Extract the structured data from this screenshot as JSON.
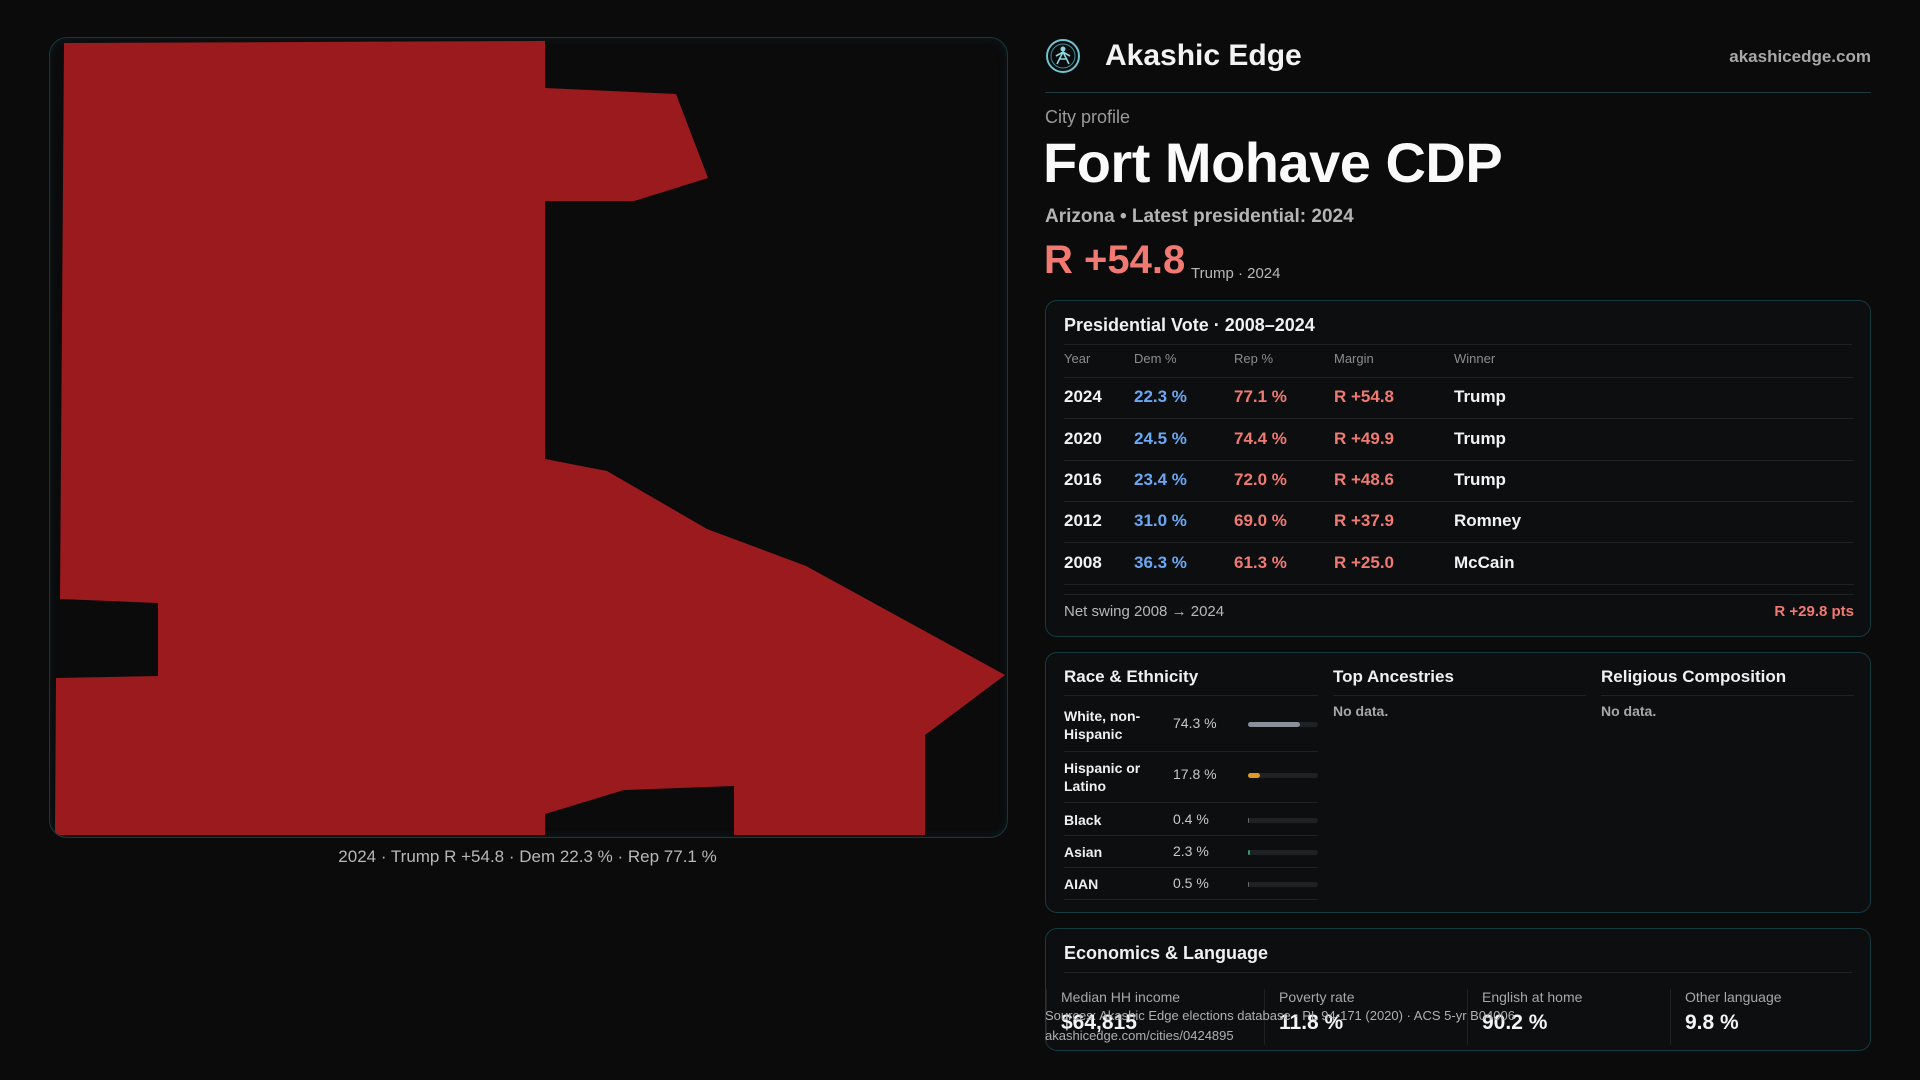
{
  "brand": {
    "name": "Akashic Edge",
    "url": "akashicedge.com"
  },
  "profile": {
    "eyebrow": "City profile",
    "city": "Fort Mohave CDP",
    "subline": "Arizona • Latest presidential: 2024",
    "margin": "R +54.8",
    "margin_note": "Trump · 2024"
  },
  "map": {
    "caption": "2024 · Trump R +54.8 · Dem 22.3 % · Rep 77.1 %",
    "fill_color": "#9b1a1e"
  },
  "vote": {
    "title": "Presidential Vote · 2008–2024",
    "headers": {
      "year": "Year",
      "dem": "Dem %",
      "rep": "Rep %",
      "margin": "Margin",
      "winner": "Winner"
    },
    "rows": [
      {
        "year": "2024",
        "dem": "22.3 %",
        "rep": "77.1 %",
        "margin": "R +54.8",
        "winner": "Trump"
      },
      {
        "year": "2020",
        "dem": "24.5 %",
        "rep": "74.4 %",
        "margin": "R +49.9",
        "winner": "Trump"
      },
      {
        "year": "2016",
        "dem": "23.4 %",
        "rep": "72.0 %",
        "margin": "R +48.6",
        "winner": "Trump"
      },
      {
        "year": "2012",
        "dem": "31.0 %",
        "rep": "69.0 %",
        "margin": "R +37.9",
        "winner": "Romney"
      },
      {
        "year": "2008",
        "dem": "36.3 %",
        "rep": "61.3 %",
        "margin": "R +25.0",
        "winner": "McCain"
      }
    ],
    "swing_label": "Net swing 2008 → 2024",
    "swing_value": "R +29.8 pts"
  },
  "race": {
    "title": "Race & Ethnicity",
    "rows": [
      {
        "label": "White, non-Hispanic",
        "pct": "74.3 %",
        "value": 0.743,
        "color": "#8a9099"
      },
      {
        "label": "Hispanic or Latino",
        "pct": "17.8 %",
        "value": 0.178,
        "color": "#e0962a"
      },
      {
        "label": "Black",
        "pct": "0.4 %",
        "value": 0.004,
        "color": "#6a6a6a"
      },
      {
        "label": "Asian",
        "pct": "2.3 %",
        "value": 0.023,
        "color": "#2f9a6a"
      },
      {
        "label": "AIAN",
        "pct": "0.5 %",
        "value": 0.005,
        "color": "#6a6a6a"
      }
    ]
  },
  "ancestry": {
    "title": "Top Ancestries",
    "empty": "No data."
  },
  "religion": {
    "title": "Religious Composition",
    "empty": "No data."
  },
  "econ": {
    "title": "Economics & Language",
    "items": [
      {
        "label": "Median HH income",
        "value": "$64,815"
      },
      {
        "label": "Poverty rate",
        "value": "11.8 %"
      },
      {
        "label": "English at home",
        "value": "90.2 %"
      },
      {
        "label": "Other language",
        "value": "9.8 %"
      }
    ]
  },
  "source": {
    "line1": "Sources: Akashic Edge elections database · PL 94-171 (2020) · ACS 5-yr B04006",
    "line2": "akashicedge.com/cities/0424895"
  }
}
